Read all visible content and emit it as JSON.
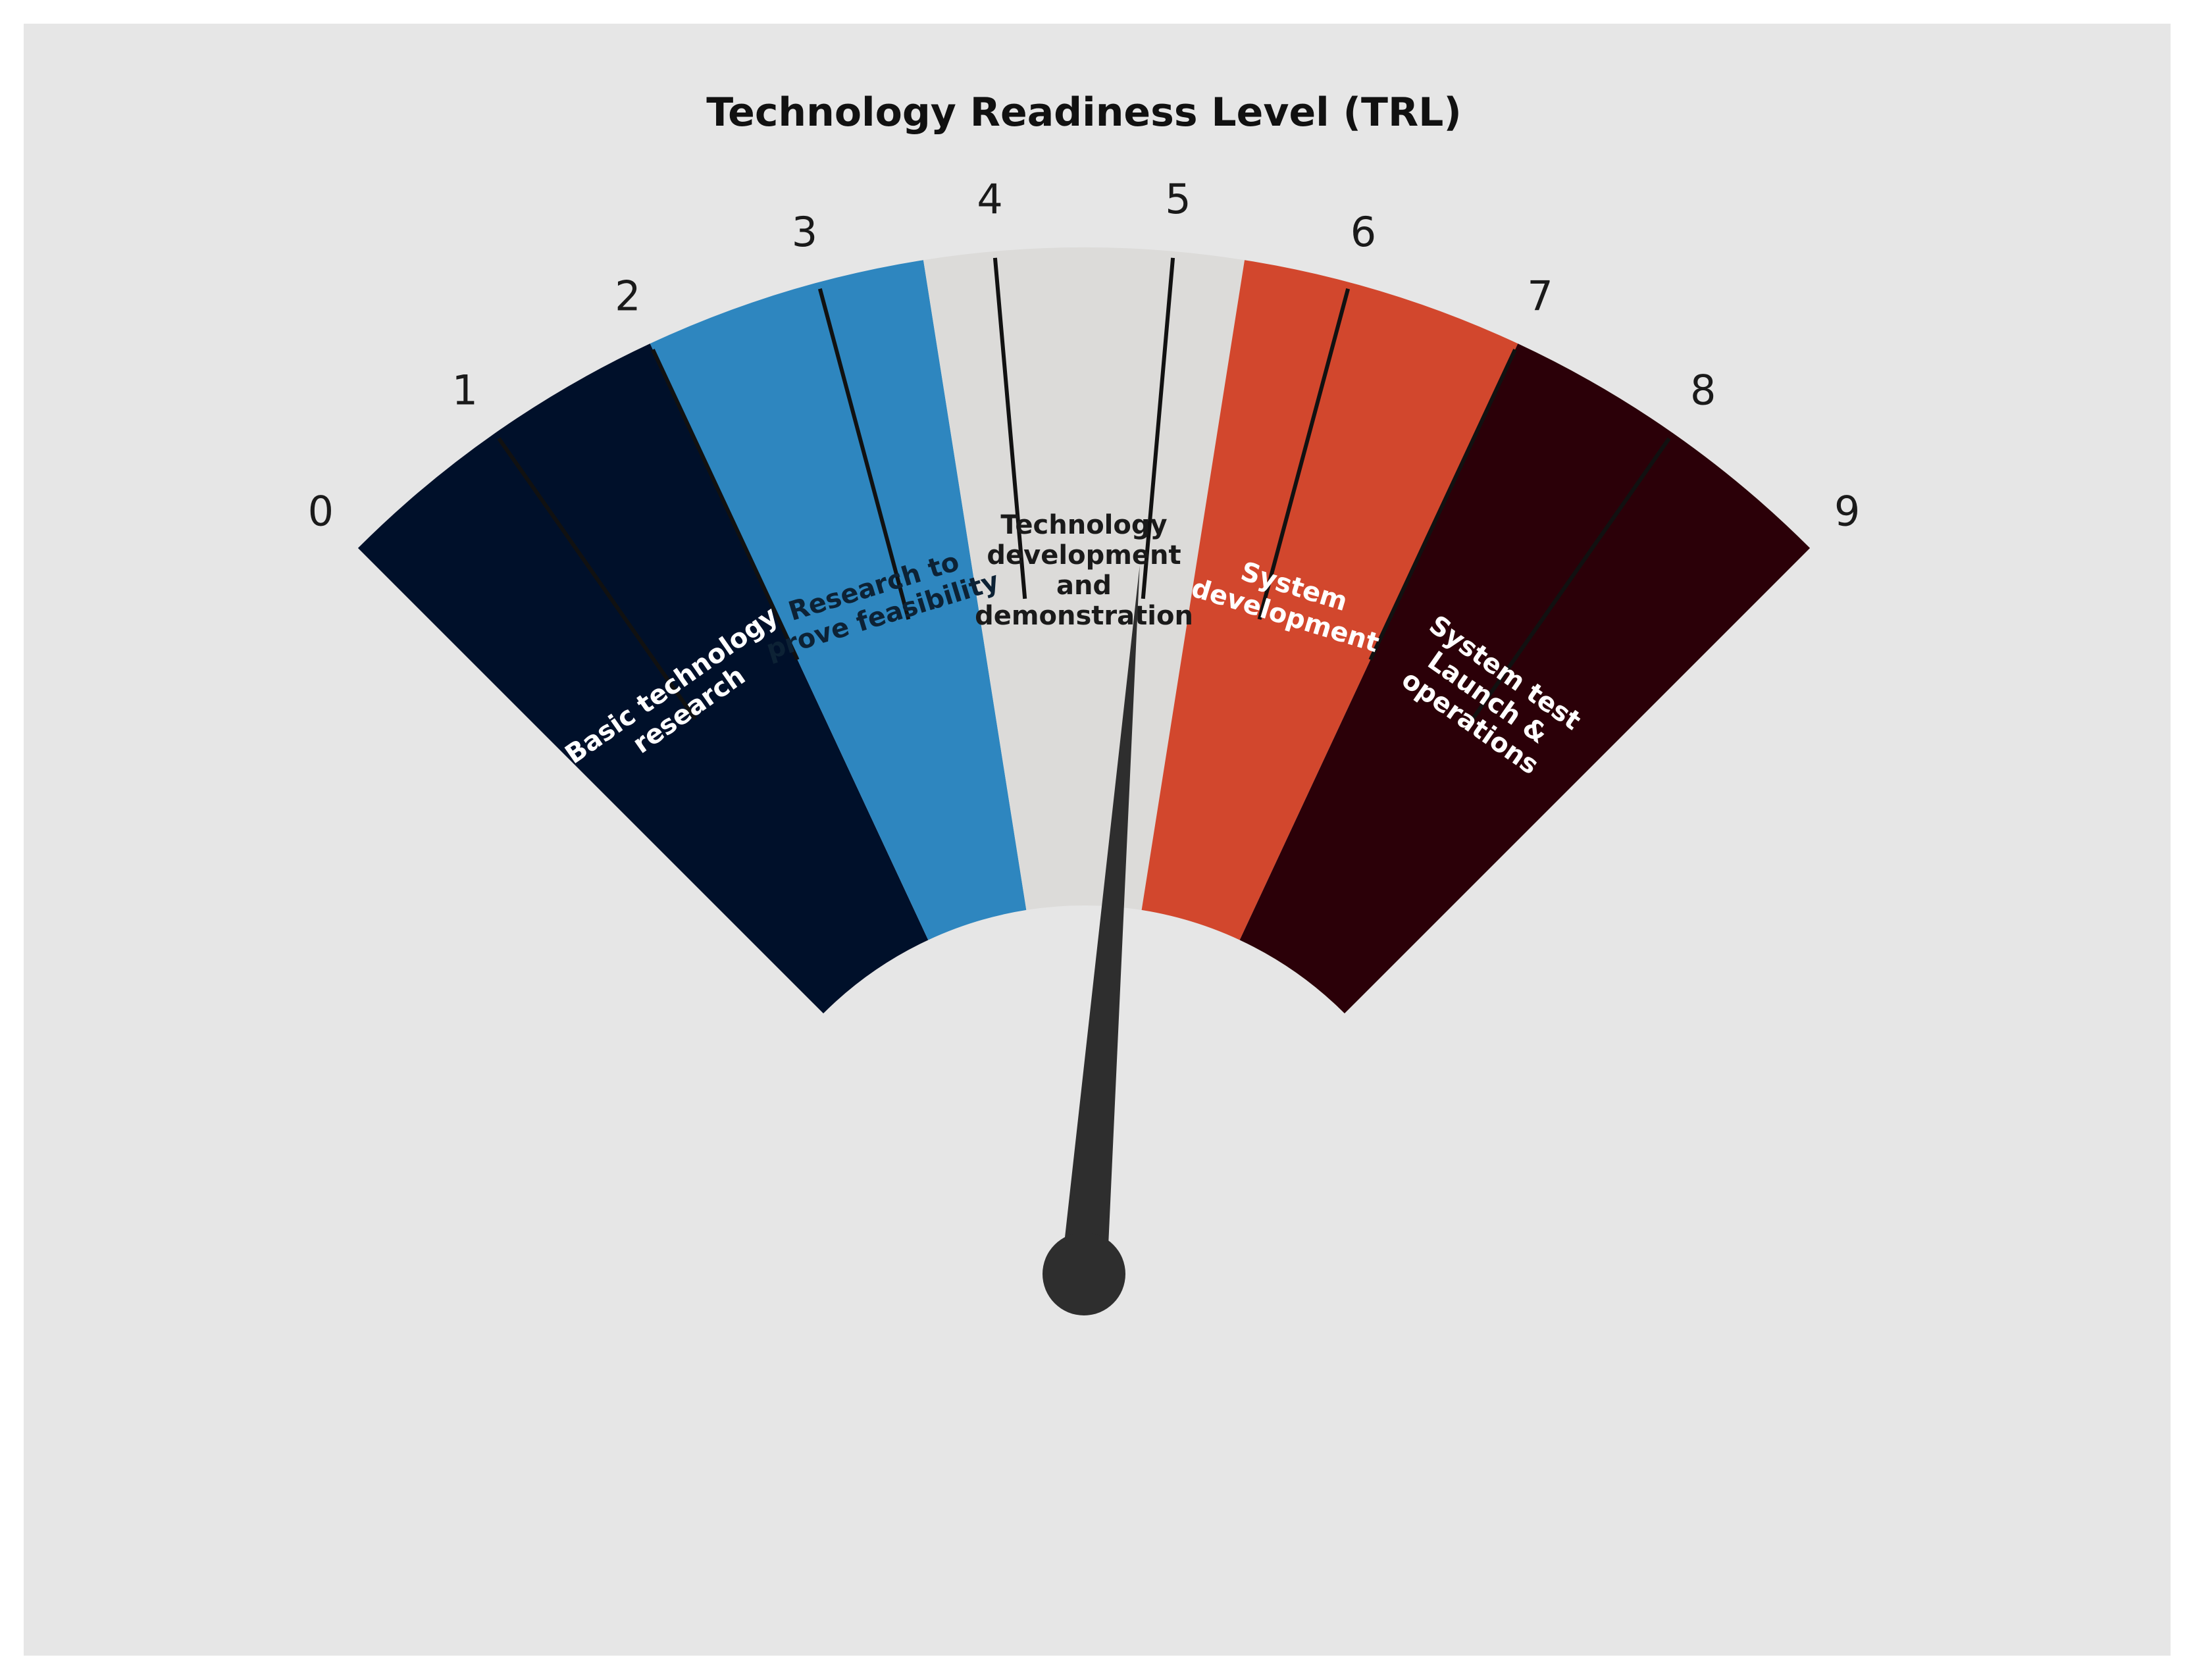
{
  "chart_data": {
    "type": "gauge",
    "title": "Technology Readiness Level (TRL)",
    "scale": {
      "min": 0,
      "max": 9,
      "ticks": [
        "0",
        "1",
        "2",
        "3",
        "4",
        "5",
        "6",
        "7",
        "8",
        "9"
      ]
    },
    "needle_value": 4.95,
    "stages": [
      {
        "from": 0,
        "to": 2,
        "color": "#00102a",
        "text_color": "#ffffff",
        "lines": [
          "Basic technology",
          "research"
        ]
      },
      {
        "from": 2,
        "to": 3.6,
        "color": "#2e86bf",
        "text_color": "#0d2235",
        "lines": [
          "Research to",
          "prove feasibility"
        ]
      },
      {
        "from": 3.6,
        "to": 5.4,
        "color": "#dcdbd9",
        "text_color": "#1a1a1a",
        "lines": [
          "Technology",
          "development",
          "and",
          "demonstration"
        ]
      },
      {
        "from": 5.4,
        "to": 7,
        "color": "#d2472d",
        "text_color": "#ffffff",
        "lines": [
          "System",
          "development"
        ]
      },
      {
        "from": 7,
        "to": 9,
        "color": "#2b0008",
        "text_color": "#ffffff",
        "lines": [
          "System test",
          "Launch &",
          "operations"
        ]
      }
    ]
  },
  "colors": {
    "background": "#e6e6e6",
    "needle": "#2e2e2e",
    "tick": "#111111"
  }
}
